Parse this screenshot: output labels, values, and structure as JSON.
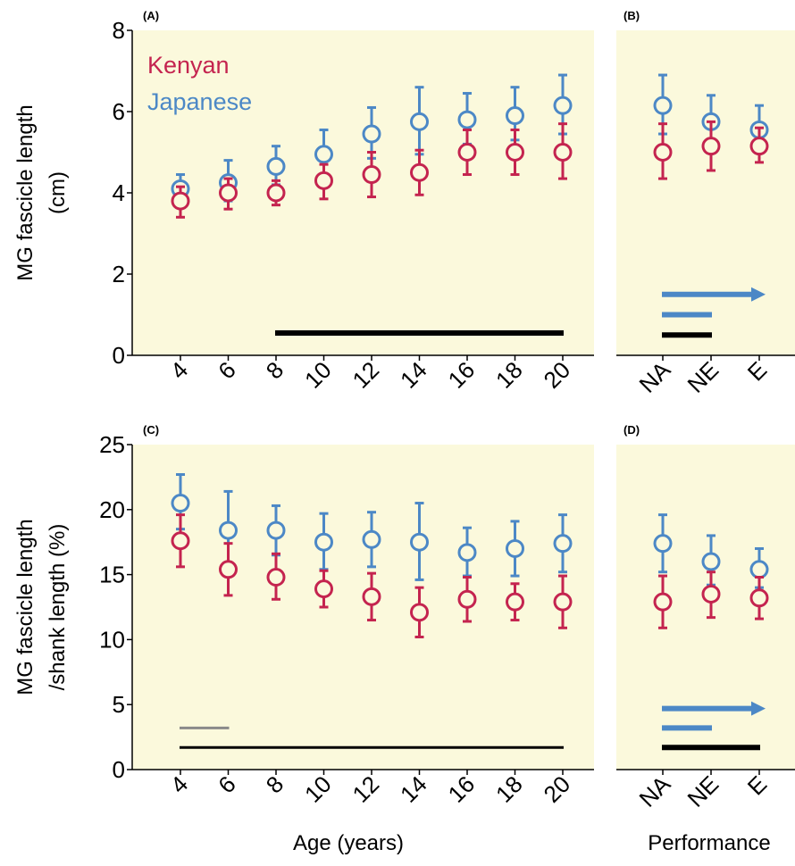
{
  "colors": {
    "background": "#fbf9dc",
    "kenyan": "#c4244f",
    "japanese": "#4c88c6",
    "bar_black": "#000000",
    "bar_gray": "#8a8a8a"
  },
  "legend": {
    "kenyan": "Kenyan",
    "japanese": "Japanese"
  },
  "xlabels": {
    "age": "Age (years)",
    "performance": "Performance"
  },
  "chart_data": [
    {
      "panel": "(A)",
      "type": "scatter",
      "ylabel": "MG fascicle length",
      "ylabel2": "(cm)",
      "ylim": [
        0,
        8
      ],
      "yticks": [
        0,
        2,
        4,
        6,
        8
      ],
      "x": [
        "4",
        "6",
        "8",
        "10",
        "12",
        "14",
        "16",
        "18",
        "20"
      ],
      "series": [
        {
          "name": "Japanese",
          "values": [
            4.1,
            4.25,
            4.65,
            4.95,
            5.45,
            5.75,
            5.8,
            5.9,
            6.15
          ],
          "err_up": [
            0.35,
            0.55,
            0.5,
            0.6,
            0.65,
            0.85,
            0.65,
            0.7,
            0.75
          ],
          "err_down": [
            0.3,
            0.45,
            0.45,
            0.5,
            0.6,
            0.8,
            0.6,
            0.6,
            0.7
          ]
        },
        {
          "name": "Kenyan",
          "values": [
            3.8,
            4.0,
            4.0,
            4.3,
            4.45,
            4.5,
            5.0,
            5.0,
            5.0
          ],
          "err_up": [
            0.35,
            0.35,
            0.3,
            0.4,
            0.55,
            0.55,
            0.55,
            0.55,
            0.7
          ],
          "err_down": [
            0.4,
            0.4,
            0.3,
            0.45,
            0.55,
            0.55,
            0.55,
            0.55,
            0.65
          ]
        }
      ],
      "sig_bars": [
        {
          "from": "8",
          "to": "20",
          "color": "#000000",
          "level": 0.55
        }
      ]
    },
    {
      "panel": "(B)",
      "type": "scatter",
      "ylim": [
        0,
        8
      ],
      "x": [
        "NA",
        "NE",
        "E"
      ],
      "series": [
        {
          "name": "Japanese",
          "values": [
            6.15,
            5.75,
            5.55
          ],
          "err_up": [
            0.75,
            0.65,
            0.6
          ],
          "err_down": [
            0.7,
            0.6,
            0.5
          ]
        },
        {
          "name": "Kenyan",
          "values": [
            5.0,
            5.15,
            5.15
          ],
          "err_up": [
            0.7,
            0.6,
            0.45
          ],
          "err_down": [
            0.65,
            0.6,
            0.4
          ]
        }
      ],
      "sig_bars": [
        {
          "from": "NA",
          "to": "E",
          "color": "#4c88c6",
          "level": 1.5,
          "arrow": true
        },
        {
          "from": "NA",
          "to": "NE",
          "color": "#4c88c6",
          "level": 1.0
        },
        {
          "from": "NA",
          "to": "NE",
          "color": "#000000",
          "level": 0.5
        }
      ]
    },
    {
      "panel": "(C)",
      "type": "scatter",
      "ylabel": "MG fascicle length",
      "ylabel2": "/shank length (%)",
      "ylim": [
        0,
        25
      ],
      "yticks": [
        0,
        5,
        10,
        15,
        20,
        25
      ],
      "x": [
        "4",
        "6",
        "8",
        "10",
        "12",
        "14",
        "16",
        "18",
        "20"
      ],
      "series": [
        {
          "name": "Japanese",
          "values": [
            20.5,
            18.4,
            18.4,
            17.5,
            17.7,
            17.5,
            16.7,
            17.0,
            17.4
          ],
          "err_up": [
            2.2,
            3.0,
            1.9,
            2.2,
            2.1,
            3.0,
            1.9,
            2.1,
            2.2
          ],
          "err_down": [
            2.0,
            2.6,
            1.9,
            2.1,
            2.1,
            2.9,
            1.8,
            2.1,
            2.2
          ]
        },
        {
          "name": "Kenyan",
          "values": [
            17.6,
            15.4,
            14.8,
            13.9,
            13.3,
            12.1,
            13.1,
            12.9,
            12.9
          ],
          "err_up": [
            2.0,
            2.0,
            1.8,
            1.4,
            1.8,
            1.9,
            1.7,
            1.4,
            2.0
          ],
          "err_down": [
            2.0,
            2.0,
            1.7,
            1.4,
            1.8,
            1.9,
            1.7,
            1.4,
            2.0
          ]
        }
      ],
      "sig_bars": [
        {
          "from": "4",
          "to": "6",
          "color": "#8a8a8a",
          "level": 3.2
        },
        {
          "from": "4",
          "to": "20",
          "color": "#000000",
          "level": 1.7
        }
      ]
    },
    {
      "panel": "(D)",
      "type": "scatter",
      "ylim": [
        0,
        25
      ],
      "x": [
        "NA",
        "NE",
        "E"
      ],
      "series": [
        {
          "name": "Japanese",
          "values": [
            17.4,
            16.0,
            15.4
          ],
          "err_up": [
            2.2,
            2.0,
            1.6
          ],
          "err_down": [
            2.2,
            1.8,
            1.4
          ]
        },
        {
          "name": "Kenyan",
          "values": [
            12.9,
            13.5,
            13.2
          ],
          "err_up": [
            2.0,
            1.7,
            1.6
          ],
          "err_down": [
            2.0,
            1.8,
            1.6
          ]
        }
      ],
      "sig_bars": [
        {
          "from": "NA",
          "to": "E",
          "color": "#4c88c6",
          "level": 4.7,
          "arrow": true
        },
        {
          "from": "NA",
          "to": "NE",
          "color": "#4c88c6",
          "level": 3.2
        },
        {
          "from": "NA",
          "to": "E",
          "color": "#000000",
          "level": 1.7
        }
      ]
    }
  ]
}
